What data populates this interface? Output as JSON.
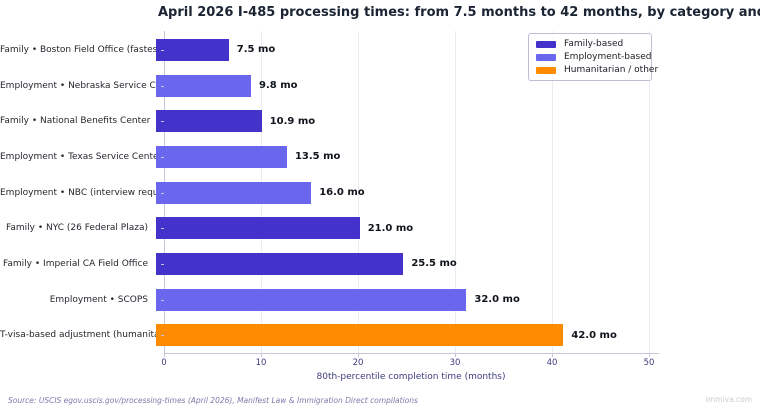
{
  "title": "April 2026 I-485 processing times: from 7.5 months to 42 months, by category and office",
  "xlabel": "80th-percentile completion time (months)",
  "source": "Source: USCIS egov.uscis.gov/processing-times (April 2026), Manifest Law & Immigration Direct compilations",
  "watermark": "immiva.com",
  "colors": {
    "family": "#4433cb",
    "employment": "#6b66ee",
    "humanitarian": "#ff8c00",
    "grid": "#ebebf3",
    "spine": "#c6c6db",
    "tick_label": "#3c3c7e",
    "title_text": "#1a2433"
  },
  "legend": {
    "items": [
      {
        "key": "family",
        "label": "Family-based"
      },
      {
        "key": "employment",
        "label": "Employment-based"
      },
      {
        "key": "humanitarian",
        "label": "Humanitarian / other"
      }
    ]
  },
  "chart_data": {
    "type": "bar",
    "orientation": "horizontal",
    "title": "April 2026 I-485 processing times: from 7.5 months to 42 months, by category and office",
    "xlabel": "80th-percentile completion time (months)",
    "ylabel": "",
    "xlim": [
      0,
      50
    ],
    "xticks": [
      0,
      10,
      20,
      30,
      40,
      50
    ],
    "grid": true,
    "legend_position": "upper right",
    "categories": [
      "Family • Boston Field Office (fastest)",
      "Employment • Nebraska Service Center",
      "Family • National Benefits Center",
      "Employment • Texas Service Center",
      "Employment • NBC (interview required)",
      "Family • NYC (26 Federal Plaza)",
      "Family • Imperial CA Field Office",
      "Employment • SCOPS",
      "T-visa-based adjustment (humanitarian)"
    ],
    "values": [
      7.5,
      9.8,
      10.9,
      13.5,
      16.0,
      21.0,
      25.5,
      32.0,
      42.0
    ],
    "value_labels": [
      "7.5 mo",
      "9.8 mo",
      "10.9 mo",
      "13.5 mo",
      "16.0 mo",
      "21.0 mo",
      "25.5 mo",
      "32.0 mo",
      "42.0 mo"
    ],
    "bar_categories": [
      "family",
      "employment",
      "family",
      "employment",
      "employment",
      "family",
      "family",
      "employment",
      "humanitarian"
    ]
  }
}
